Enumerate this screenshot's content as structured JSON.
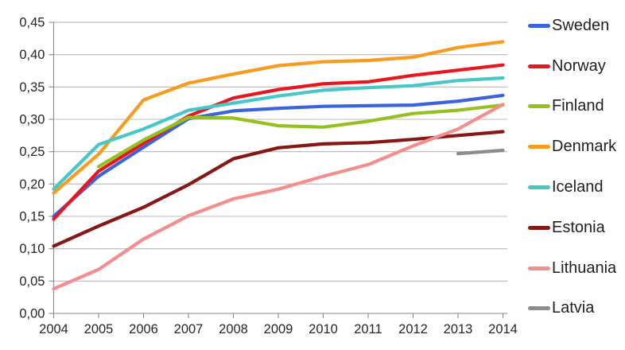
{
  "chart_data": {
    "type": "line",
    "title": "",
    "xlabel": "",
    "ylabel": "",
    "x": [
      2004,
      2005,
      2006,
      2007,
      2008,
      2009,
      2010,
      2011,
      2012,
      2013,
      2014
    ],
    "x_tick_labels": [
      "2004",
      "2005",
      "2006",
      "2007",
      "2008",
      "2009",
      "2010",
      "2011",
      "2012",
      "2013",
      "2014"
    ],
    "ylim": [
      0,
      0.45
    ],
    "y_tick_step": 0.05,
    "y_tick_labels": [
      "0,00",
      "0,05",
      "0,10",
      "0,15",
      "0,20",
      "0,25",
      "0,30",
      "0,35",
      "0,40",
      "0,45"
    ],
    "decimal_separator": ",",
    "grid": "horizontal",
    "legend_position": "right",
    "series": [
      {
        "name": "Sweden",
        "color": "#3b64dc",
        "values": [
          0.15,
          0.212,
          0.257,
          0.301,
          0.313,
          0.317,
          0.32,
          0.321,
          0.322,
          0.328,
          0.337
        ]
      },
      {
        "name": "Norway",
        "color": "#ea151d",
        "values": [
          0.146,
          0.22,
          0.263,
          0.305,
          0.333,
          0.346,
          0.355,
          0.358,
          0.368,
          0.376,
          0.384
        ]
      },
      {
        "name": "Finland",
        "color": "#95c11f",
        "values": [
          null,
          0.227,
          0.268,
          0.303,
          0.302,
          0.29,
          0.288,
          0.297,
          0.309,
          0.314,
          0.322
        ]
      },
      {
        "name": "Denmark",
        "color": "#f79c20",
        "values": [
          0.186,
          0.246,
          0.33,
          0.356,
          0.37,
          0.383,
          0.389,
          0.391,
          0.396,
          0.411,
          0.42
        ]
      },
      {
        "name": "Iceland",
        "color": "#46c8c8",
        "values": [
          0.192,
          0.261,
          0.285,
          0.314,
          0.325,
          0.336,
          0.345,
          0.349,
          0.352,
          0.36,
          0.364
        ]
      },
      {
        "name": "Estonia",
        "color": "#871713",
        "values": [
          0.104,
          0.135,
          0.164,
          0.199,
          0.239,
          0.256,
          0.262,
          0.264,
          0.269,
          0.275,
          0.281
        ]
      },
      {
        "name": "Lithuania",
        "color": "#f58d8d",
        "values": [
          0.038,
          0.068,
          0.115,
          0.151,
          0.177,
          0.192,
          0.212,
          0.23,
          0.259,
          0.285,
          0.323
        ]
      },
      {
        "name": "Latvia",
        "color": "#8c8c8c",
        "values": [
          null,
          null,
          null,
          null,
          null,
          null,
          null,
          null,
          null,
          0.247,
          0.252
        ]
      }
    ]
  },
  "colors": {
    "background": "#ffffff",
    "gridline": "#b9b9b9",
    "axis": "#8a8a8a",
    "tick_text": "#262626",
    "legend_text": "#1f1f1f"
  }
}
